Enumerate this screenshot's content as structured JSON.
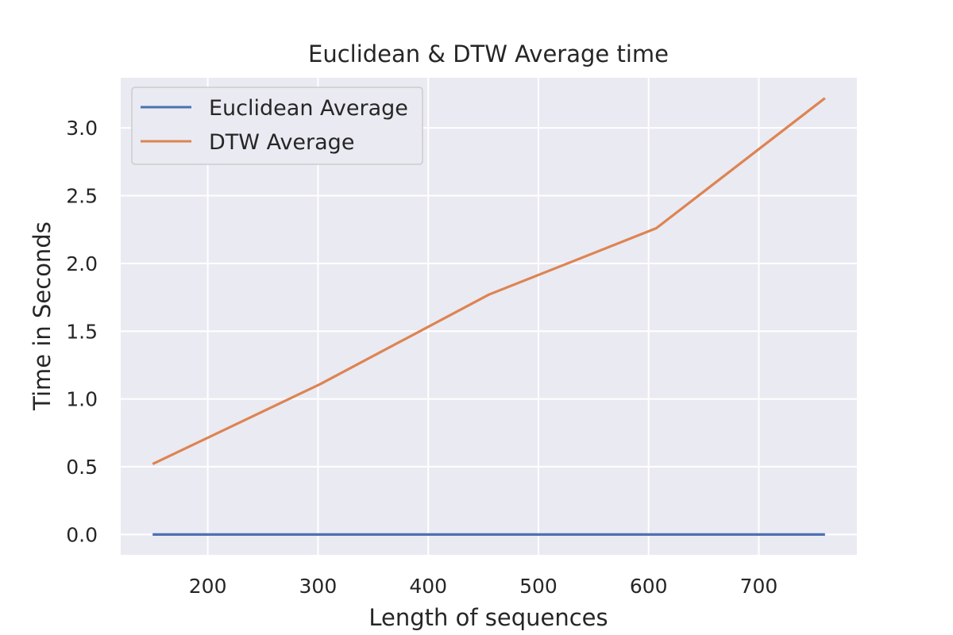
{
  "chart_data": {
    "type": "line",
    "title": "Euclidean & DTW Average time",
    "xlabel": "Length of sequences",
    "ylabel": "Time in Seconds",
    "xlim": [
      121,
      789
    ],
    "ylim": [
      -0.15,
      3.37
    ],
    "xticks": [
      200,
      300,
      400,
      500,
      600,
      700
    ],
    "yticks": [
      0.0,
      0.5,
      1.0,
      1.5,
      2.0,
      2.5,
      3.0
    ],
    "xtick_labels": [
      "200",
      "300",
      "400",
      "500",
      "600",
      "700"
    ],
    "ytick_labels": [
      "0.0",
      "0.5",
      "1.0",
      "1.5",
      "2.0",
      "2.5",
      "3.0"
    ],
    "grid": true,
    "legend_position": "upper-left",
    "x": [
      150,
      302,
      455,
      607,
      760
    ],
    "series": [
      {
        "name": "Euclidean Average",
        "color": "#4c72b0",
        "values": [
          0.0,
          0.0,
          0.0,
          0.0,
          0.0
        ]
      },
      {
        "name": "DTW Average",
        "color": "#dd8452",
        "values": [
          0.52,
          1.11,
          1.77,
          2.26,
          3.22
        ]
      }
    ]
  }
}
